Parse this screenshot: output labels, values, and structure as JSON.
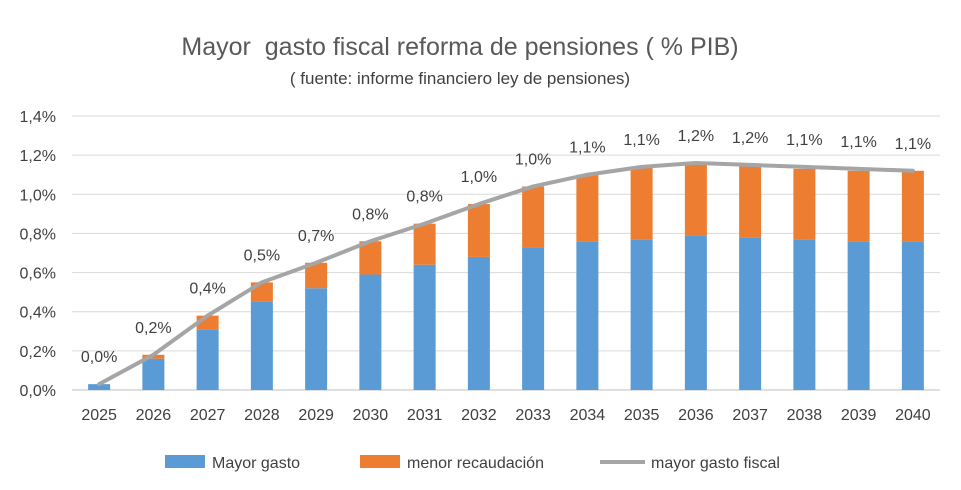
{
  "chart_data": {
    "type": "bar",
    "stacked": true,
    "title": "Mayor  gasto fiscal reforma de pensiones ( % PIB)",
    "subtitle": "( fuente: informe financiero ley de pensiones)",
    "categories": [
      "2025",
      "2026",
      "2027",
      "2028",
      "2029",
      "2030",
      "2031",
      "2032",
      "2033",
      "2034",
      "2035",
      "2036",
      "2037",
      "2038",
      "2039",
      "2040"
    ],
    "series": [
      {
        "name": "Mayor gasto",
        "type": "bar",
        "color": "#5B9BD5",
        "values": [
          0.03,
          0.16,
          0.31,
          0.45,
          0.52,
          0.59,
          0.64,
          0.68,
          0.73,
          0.76,
          0.77,
          0.79,
          0.78,
          0.77,
          0.76,
          0.76
        ]
      },
      {
        "name": "menor recaudación",
        "type": "bar",
        "color": "#ED7D31",
        "values": [
          0.0,
          0.02,
          0.07,
          0.1,
          0.13,
          0.17,
          0.21,
          0.27,
          0.31,
          0.34,
          0.37,
          0.37,
          0.37,
          0.36,
          0.36,
          0.36
        ]
      },
      {
        "name": "mayor gasto fiscal",
        "type": "line",
        "color": "#A5A5A5",
        "values": [
          0.03,
          0.18,
          0.38,
          0.55,
          0.65,
          0.76,
          0.85,
          0.95,
          1.04,
          1.1,
          1.14,
          1.16,
          1.15,
          1.14,
          1.13,
          1.12
        ]
      }
    ],
    "data_labels": [
      "0,0%",
      "0,2%",
      "0,4%",
      "0,5%",
      "0,7%",
      "0,8%",
      "0,8%",
      "1,0%",
      "1,0%",
      "1,1%",
      "1,1%",
      "1,2%",
      "1,2%",
      "1,1%",
      "1,1%",
      "1,1%"
    ],
    "y_ticks": [
      "0,0%",
      "0,2%",
      "0,4%",
      "0,6%",
      "0,8%",
      "1,0%",
      "1,2%",
      "1,4%"
    ],
    "ylim": [
      0,
      1.4
    ],
    "grid": true,
    "legend_position": "bottom",
    "xlabel": "",
    "ylabel": ""
  }
}
